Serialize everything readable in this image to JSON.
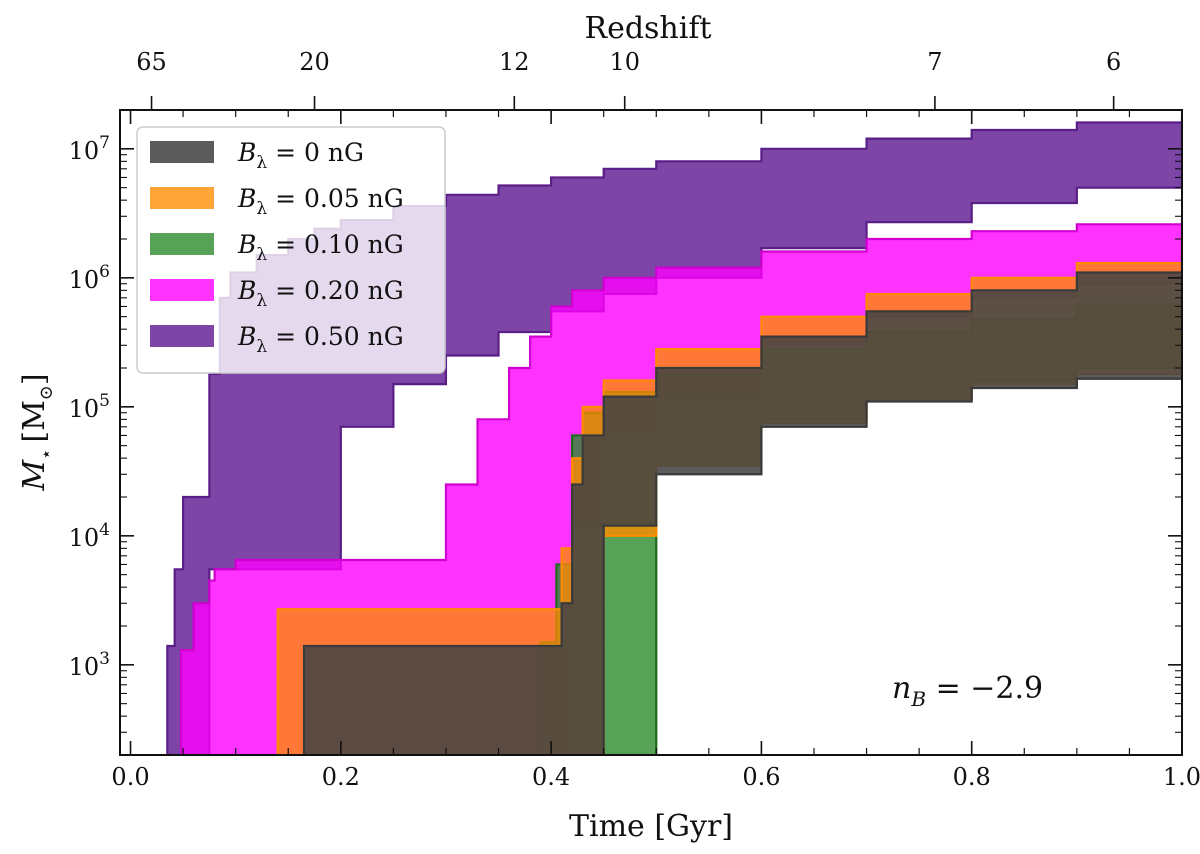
{
  "chart_data": {
    "type": "area",
    "xlabel": "Time [Gyr]",
    "ylabel_symbol": "M",
    "ylabel_sub": "⋆",
    "ylabel_unit": "[M",
    "ylabel_unit_sub": "⊙",
    "ylabel_unit_close": "]",
    "top_axis_label": "Redshift",
    "xlim": [
      -0.01,
      1.0
    ],
    "ylim": [
      200,
      20000000
    ],
    "yscale": "log",
    "x_ticks": [
      0.0,
      0.2,
      0.4,
      0.6,
      0.8,
      1.0
    ],
    "x_tick_labels": [
      "0.0",
      "0.2",
      "0.4",
      "0.6",
      "0.8",
      "1.0"
    ],
    "y_ticks": [
      1000,
      10000,
      100000,
      1000000,
      10000000
    ],
    "y_tick_base": "10",
    "y_tick_exps": [
      "3",
      "4",
      "5",
      "6",
      "7"
    ],
    "top_ticks_time": [
      0.02,
      0.175,
      0.365,
      0.47,
      0.765,
      0.935
    ],
    "top_tick_labels": [
      "65",
      "20",
      "12",
      "10",
      "7",
      "6"
    ],
    "annotation": {
      "text": "n",
      "sub": "B",
      "value": " = −2.9"
    },
    "legend_location": "upper left",
    "series": [
      {
        "name": "0.50 nG",
        "label_prefix": "B",
        "label_sub": "λ",
        "label_value": " = 0.50 nG",
        "color": "#6a2b9a",
        "edge": "#5a1e88",
        "opacity": 0.88,
        "x": [
          0.035,
          0.042,
          0.05,
          0.06,
          0.075,
          0.085,
          0.095,
          0.12,
          0.15,
          0.175,
          0.2,
          0.25,
          0.3,
          0.35,
          0.4,
          0.45,
          0.5,
          0.6,
          0.7,
          0.8,
          0.9,
          1.0
        ],
        "upper": [
          1400,
          5500,
          20000,
          20000,
          180000,
          700000,
          1100000,
          1500000,
          2000000,
          2400000,
          2800000,
          3600000,
          4400000,
          5200000,
          6000000,
          7000000,
          8000000,
          10000000,
          12000000,
          14000000,
          16000000,
          18000000
        ],
        "lower": [
          200,
          200,
          200,
          200,
          5500,
          5500,
          5500,
          5500,
          5500,
          5500,
          70000,
          150000,
          250000,
          380000,
          550000,
          750000,
          1000000,
          1700000,
          2700000,
          3800000,
          5000000,
          6500000
        ]
      },
      {
        "name": "0.20 nG",
        "label_prefix": "B",
        "label_sub": "λ",
        "label_value": " = 0.20 nG",
        "color": "#ff00ff",
        "edge": "#d000d0",
        "opacity": 0.8,
        "x": [
          0.048,
          0.06,
          0.075,
          0.08,
          0.1,
          0.14,
          0.16,
          0.2,
          0.25,
          0.29,
          0.3,
          0.33,
          0.36,
          0.38,
          0.4,
          0.42,
          0.45,
          0.5,
          0.6,
          0.7,
          0.8,
          0.9,
          1.0
        ],
        "upper": [
          1300,
          3000,
          4500,
          5500,
          6500,
          6500,
          6500,
          6500,
          6500,
          6500,
          25000,
          80000,
          200000,
          350000,
          600000,
          800000,
          1000000,
          1200000,
          1600000,
          2000000,
          2300000,
          2600000,
          2900000
        ],
        "lower": [
          200,
          200,
          200,
          200,
          200,
          200,
          200,
          200,
          200,
          200,
          200,
          200,
          200,
          200,
          200,
          12000,
          60000,
          120000,
          300000,
          500000,
          700000,
          900000,
          1100000
        ]
      },
      {
        "name": "0.10 nG",
        "label_prefix": "B",
        "label_sub": "λ",
        "label_value": " = 0.10 nG",
        "color": "#2e8b2e",
        "edge": "#1e6b1e",
        "opacity": 0.8,
        "x": [
          0.39,
          0.405,
          0.42,
          0.43,
          0.45,
          0.5,
          0.6,
          0.7,
          0.8,
          0.9,
          1.0
        ],
        "upper": [
          1500,
          6000,
          60000,
          90000,
          130000,
          180000,
          280000,
          380000,
          480000,
          620000,
          800000
        ],
        "lower": [
          200,
          200,
          200,
          200,
          200,
          35000,
          80000,
          120000,
          160000,
          200000,
          260000
        ]
      },
      {
        "name": "0.05 nG",
        "label_prefix": "B",
        "label_sub": "λ",
        "label_value": " = 0.05 nG",
        "color": "#ff8c00",
        "edge": "#ff8c00",
        "opacity": 0.78,
        "x": [
          0.14,
          0.39,
          0.4,
          0.41,
          0.42,
          0.43,
          0.45,
          0.5,
          0.6,
          0.7,
          0.8,
          0.9,
          1.0
        ],
        "upper": [
          2700,
          2700,
          2700,
          8000,
          40000,
          100000,
          160000,
          280000,
          500000,
          750000,
          1000000,
          1300000,
          1600000
        ],
        "lower": [
          200,
          200,
          200,
          200,
          200,
          200,
          10000,
          35000,
          75000,
          115000,
          150000,
          180000,
          210000
        ]
      },
      {
        "name": "0 nG",
        "label_prefix": "B",
        "label_sub": "λ",
        "label_value": " = 0 nG",
        "color": "#444444",
        "edge": "#3a3a3a",
        "opacity": 0.88,
        "x": [
          0.165,
          0.39,
          0.4,
          0.41,
          0.42,
          0.43,
          0.45,
          0.5,
          0.6,
          0.7,
          0.8,
          0.9,
          1.0
        ],
        "upper": [
          1400,
          1400,
          1400,
          3000,
          25000,
          60000,
          120000,
          200000,
          350000,
          550000,
          800000,
          1100000,
          1500000
        ],
        "lower": [
          200,
          200,
          200,
          200,
          200,
          200,
          12000,
          30000,
          70000,
          110000,
          140000,
          165000,
          190000
        ]
      }
    ]
  }
}
